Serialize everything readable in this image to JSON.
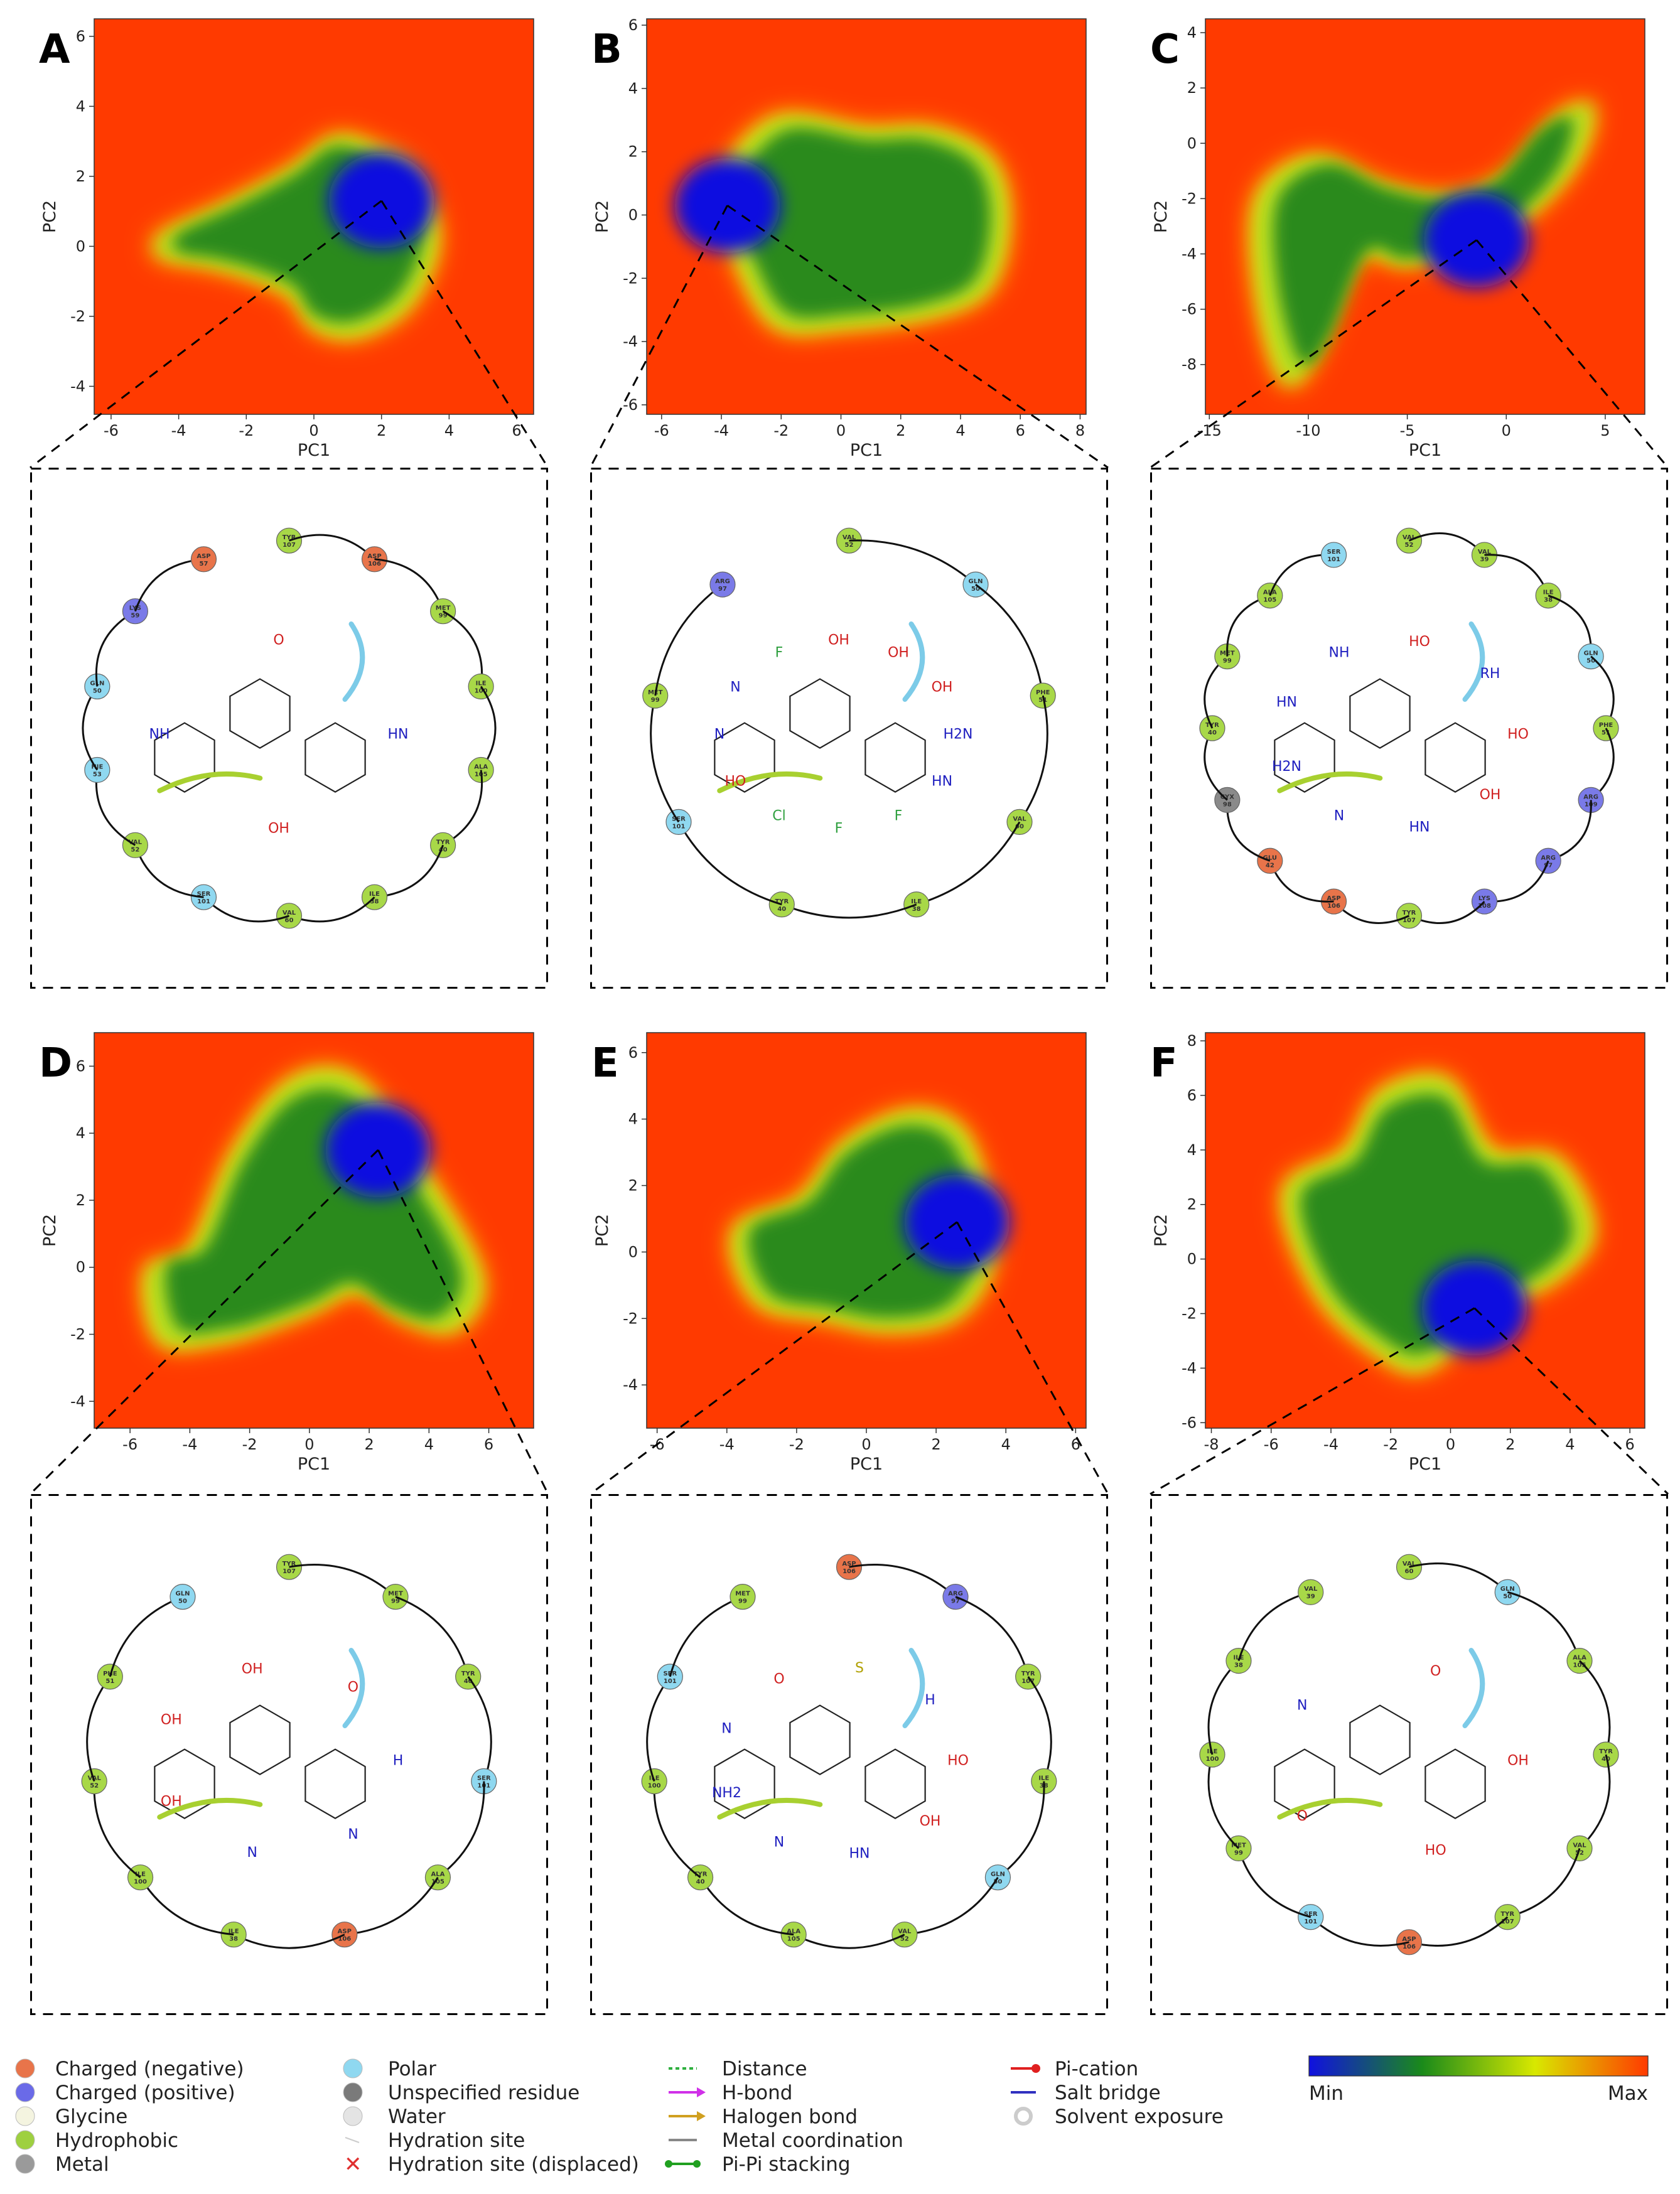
{
  "panels": [
    {
      "letter": "A",
      "xlim": [
        -6.5,
        6.5
      ],
      "ylim": [
        -4.8,
        6.5
      ],
      "xticks": [
        -6,
        -4,
        -2,
        0,
        2,
        4,
        6
      ],
      "yticks": [
        -4,
        -2,
        0,
        2,
        4,
        6
      ],
      "xlabel": "PC1",
      "ylabel": "PC2",
      "minimum": [
        2.0,
        1.3
      ],
      "residues": [
        {
          "n": "TYR",
          "i": "107",
          "t": "hyd"
        },
        {
          "n": "ASP",
          "i": "106",
          "t": "neg"
        },
        {
          "n": "MET",
          "i": "99",
          "t": "hyd"
        },
        {
          "n": "ILE",
          "i": "100",
          "t": "hyd"
        },
        {
          "n": "ALA",
          "i": "105",
          "t": "hyd"
        },
        {
          "n": "TYR",
          "i": "40",
          "t": "hyd"
        },
        {
          "n": "ILE",
          "i": "38",
          "t": "hyd"
        },
        {
          "n": "VAL",
          "i": "60",
          "t": "hyd"
        },
        {
          "n": "SER",
          "i": "101",
          "t": "pol"
        },
        {
          "n": "VAL",
          "i": "52",
          "t": "hyd"
        },
        {
          "n": "HIE",
          "i": "53",
          "t": "pol"
        },
        {
          "n": "GLN",
          "i": "50",
          "t": "pol"
        },
        {
          "n": "LYS",
          "i": "59",
          "t": "pos"
        },
        {
          "n": "ASP",
          "i": "57",
          "t": "neg"
        }
      ],
      "atoms": [
        "HN",
        "OH",
        "NH",
        "O"
      ]
    },
    {
      "letter": "B",
      "xlim": [
        -6.5,
        8.2
      ],
      "ylim": [
        -6.3,
        6.2
      ],
      "xticks": [
        -6,
        -4,
        -2,
        0,
        2,
        4,
        6,
        8
      ],
      "yticks": [
        -6,
        -4,
        -2,
        0,
        2,
        4,
        6
      ],
      "xlabel": "PC1",
      "ylabel": "PC2",
      "minimum": [
        -3.8,
        0.3
      ],
      "residues": [
        {
          "n": "VAL",
          "i": "52",
          "t": "hyd"
        },
        {
          "n": "GLN",
          "i": "50",
          "t": "pol"
        },
        {
          "n": "PHE",
          "i": "51",
          "t": "hyd"
        },
        {
          "n": "VAL",
          "i": "60",
          "t": "hyd"
        },
        {
          "n": "ILE",
          "i": "38",
          "t": "hyd"
        },
        {
          "n": "TYR",
          "i": "40",
          "t": "hyd"
        },
        {
          "n": "SER",
          "i": "101",
          "t": "pol"
        },
        {
          "n": "MET",
          "i": "99",
          "t": "hyd"
        },
        {
          "n": "ARG",
          "i": "97",
          "t": "pos"
        }
      ],
      "atoms": [
        "H2N",
        "HN",
        "F",
        "F",
        "Cl",
        "HO",
        "N",
        "N",
        "F",
        "OH",
        "OH",
        "OH"
      ]
    },
    {
      "letter": "C",
      "xlim": [
        -15.2,
        7
      ],
      "ylim": [
        -9.8,
        4.5
      ],
      "xticks": [
        -15,
        -10,
        -5,
        0,
        5
      ],
      "yticks": [
        -8,
        -6,
        -4,
        -2,
        0,
        2,
        4
      ],
      "xlabel": "PC1",
      "ylabel": "PC2",
      "minimum": [
        -1.5,
        -3.5
      ],
      "residues": [
        {
          "n": "VAL",
          "i": "52",
          "t": "hyd"
        },
        {
          "n": "VAL",
          "i": "39",
          "t": "hyd"
        },
        {
          "n": "ILE",
          "i": "38",
          "t": "hyd"
        },
        {
          "n": "GLN",
          "i": "50",
          "t": "pol"
        },
        {
          "n": "PHE",
          "i": "51",
          "t": "hyd"
        },
        {
          "n": "ARG",
          "i": "109",
          "t": "pos"
        },
        {
          "n": "ARG",
          "i": "97",
          "t": "pos"
        },
        {
          "n": "LYS",
          "i": "108",
          "t": "pos"
        },
        {
          "n": "TYR",
          "i": "107",
          "t": "hyd"
        },
        {
          "n": "ASP",
          "i": "106",
          "t": "neg"
        },
        {
          "n": "GLU",
          "i": "42",
          "t": "neg"
        },
        {
          "n": "CYX",
          "i": "98",
          "t": "uns"
        },
        {
          "n": "TYR",
          "i": "40",
          "t": "hyd"
        },
        {
          "n": "MET",
          "i": "99",
          "t": "hyd"
        },
        {
          "n": "ALA",
          "i": "105",
          "t": "hyd"
        },
        {
          "n": "SER",
          "i": "101",
          "t": "pol"
        }
      ],
      "atoms": [
        "HO",
        "OH",
        "HN",
        "N",
        "H2N",
        "HN",
        "NH",
        "HO",
        "RH"
      ]
    },
    {
      "letter": "D",
      "xlim": [
        -7.2,
        7.5
      ],
      "ylim": [
        -4.8,
        7
      ],
      "xticks": [
        -6,
        -4,
        -2,
        0,
        2,
        4,
        6
      ],
      "yticks": [
        -4,
        -2,
        0,
        2,
        4,
        6
      ],
      "xlabel": "PC1",
      "ylabel": "PC2",
      "minimum": [
        2.3,
        3.5
      ],
      "residues": [
        {
          "n": "TYR",
          "i": "107",
          "t": "hyd"
        },
        {
          "n": "MET",
          "i": "99",
          "t": "hyd"
        },
        {
          "n": "TYR",
          "i": "40",
          "t": "hyd"
        },
        {
          "n": "SER",
          "i": "101",
          "t": "pol"
        },
        {
          "n": "ALA",
          "i": "105",
          "t": "hyd"
        },
        {
          "n": "ASP",
          "i": "106",
          "t": "neg"
        },
        {
          "n": "ILE",
          "i": "38",
          "t": "hyd"
        },
        {
          "n": "ILE",
          "i": "100",
          "t": "hyd"
        },
        {
          "n": "VAL",
          "i": "52",
          "t": "hyd"
        },
        {
          "n": "PHE",
          "i": "51",
          "t": "hyd"
        },
        {
          "n": "GLN",
          "i": "50",
          "t": "pol"
        }
      ],
      "atoms": [
        "H",
        "N",
        "N",
        "OH",
        "OH",
        "OH",
        "O"
      ]
    },
    {
      "letter": "E",
      "xlim": [
        -6.3,
        6.3
      ],
      "ylim": [
        -5.3,
        6.6
      ],
      "xticks": [
        -6,
        -4,
        -2,
        0,
        2,
        4,
        6
      ],
      "yticks": [
        -4,
        -2,
        0,
        2,
        4,
        6
      ],
      "xlabel": "PC1",
      "ylabel": "PC2",
      "minimum": [
        2.6,
        0.9
      ],
      "residues": [
        {
          "n": "ASP",
          "i": "106",
          "t": "neg"
        },
        {
          "n": "ARG",
          "i": "97",
          "t": "pos"
        },
        {
          "n": "TYR",
          "i": "107",
          "t": "hyd"
        },
        {
          "n": "ILE",
          "i": "38",
          "t": "hyd"
        },
        {
          "n": "GLN",
          "i": "50",
          "t": "pol"
        },
        {
          "n": "VAL",
          "i": "52",
          "t": "hyd"
        },
        {
          "n": "ALA",
          "i": "105",
          "t": "hyd"
        },
        {
          "n": "TYR",
          "i": "40",
          "t": "hyd"
        },
        {
          "n": "ILE",
          "i": "100",
          "t": "hyd"
        },
        {
          "n": "SER",
          "i": "101",
          "t": "pol"
        },
        {
          "n": "MET",
          "i": "99",
          "t": "hyd"
        }
      ],
      "atoms": [
        "HO",
        "OH",
        "HN",
        "N",
        "NH2",
        "N",
        "O",
        "S",
        "H"
      ]
    },
    {
      "letter": "F",
      "xlim": [
        -8.2,
        6.5
      ],
      "ylim": [
        -6.2,
        8.3
      ],
      "xticks": [
        -8,
        -6,
        -4,
        -2,
        0,
        2,
        4,
        6
      ],
      "yticks": [
        -6,
        -4,
        -2,
        0,
        2,
        4,
        6,
        8
      ],
      "xlabel": "PC1",
      "ylabel": "PC2",
      "minimum": [
        0.8,
        -1.8
      ],
      "residues": [
        {
          "n": "VAL",
          "i": "60",
          "t": "hyd"
        },
        {
          "n": "GLN",
          "i": "50",
          "t": "pol"
        },
        {
          "n": "ALA",
          "i": "105",
          "t": "hyd"
        },
        {
          "n": "TYR",
          "i": "40",
          "t": "hyd"
        },
        {
          "n": "VAL",
          "i": "52",
          "t": "hyd"
        },
        {
          "n": "TYR",
          "i": "107",
          "t": "hyd"
        },
        {
          "n": "ASP",
          "i": "106",
          "t": "neg"
        },
        {
          "n": "SER",
          "i": "101",
          "t": "pol"
        },
        {
          "n": "MET",
          "i": "99",
          "t": "hyd"
        },
        {
          "n": "ILE",
          "i": "100",
          "t": "hyd"
        },
        {
          "n": "ILE",
          "i": "38",
          "t": "hyd"
        },
        {
          "n": "VAL",
          "i": "39",
          "t": "hyd"
        }
      ],
      "atoms": [
        "OH",
        "HO",
        "O",
        "N",
        "O"
      ]
    }
  ],
  "legend": {
    "residue_types": [
      {
        "label": "Charged (negative)",
        "color": "#e8744a"
      },
      {
        "label": "Charged (positive)",
        "color": "#6a6ae8"
      },
      {
        "label": "Glycine",
        "color": "#f4f4e0"
      },
      {
        "label": "Hydrophobic",
        "color": "#9ed040"
      },
      {
        "label": "Metal",
        "color": "#9a9a9a"
      }
    ],
    "other_types": [
      {
        "label": "Polar",
        "color": "#8fd8f0"
      },
      {
        "label": "Unspecified residue",
        "color": "#7a7a7a"
      },
      {
        "label": "Water",
        "color": "#e4e4e4"
      },
      {
        "label": "Hydration site",
        "color": "#f0f0f0"
      },
      {
        "label": "Hydration site (displaced)",
        "color": "#e03030"
      }
    ],
    "interactions": [
      {
        "label": "Distance",
        "color": "#30b040"
      },
      {
        "label": "H-bond",
        "color": "#d030e8"
      },
      {
        "label": "Halogen bond",
        "color": "#d0a020"
      },
      {
        "label": "Metal coordination",
        "color": "#888888"
      },
      {
        "label": "Pi-Pi stacking",
        "color": "#20a020"
      }
    ],
    "interactions2": [
      {
        "label": "Pi-cation",
        "color": "#e02020"
      },
      {
        "label": "Salt bridge",
        "color": "#3030c0"
      },
      {
        "label": "Solvent exposure",
        "color": "#cccccc"
      }
    ],
    "colorbar": {
      "min_label": "Min",
      "max_label": "Max",
      "colors": [
        "#1010e0",
        "#1a8a1a",
        "#d8e800",
        "#ff3a00"
      ]
    }
  }
}
